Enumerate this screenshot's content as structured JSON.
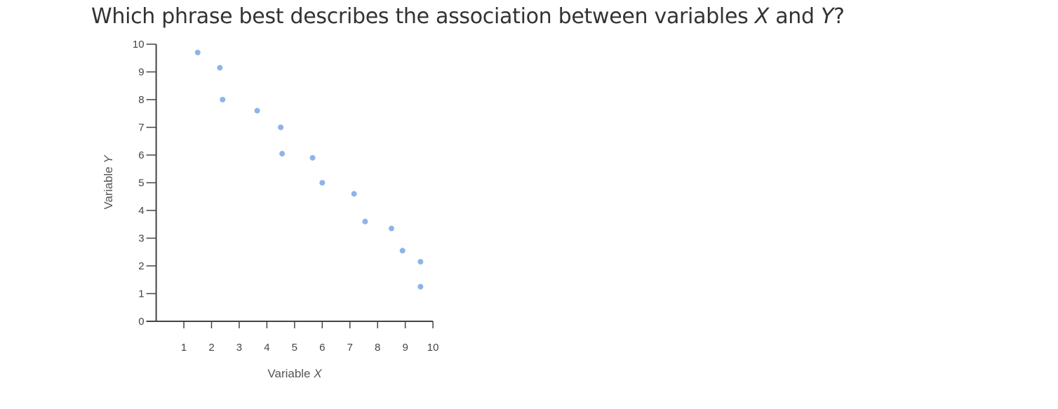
{
  "question": {
    "prefix": "Which phrase best describes the association between variables ",
    "var_x": "X",
    "middle": " and ",
    "var_y": "Y",
    "suffix": "?"
  },
  "chart_data": {
    "type": "scatter",
    "title": "",
    "xlabel": "Variable X",
    "ylabel": "Variable Y",
    "xlim": [
      0,
      10
    ],
    "ylim": [
      0,
      10
    ],
    "x_ticks": [
      "1",
      "2",
      "3",
      "4",
      "5",
      "6",
      "7",
      "8",
      "9",
      "10"
    ],
    "y_ticks": [
      "0",
      "1",
      "2",
      "3",
      "4",
      "5",
      "6",
      "7",
      "8",
      "9",
      "10"
    ],
    "grid": false,
    "point_color": "#8db4ea",
    "axis_color": "#444444",
    "points": [
      {
        "x": 1.5,
        "y": 9.7
      },
      {
        "x": 2.3,
        "y": 9.15
      },
      {
        "x": 2.4,
        "y": 8.0
      },
      {
        "x": 3.65,
        "y": 7.6
      },
      {
        "x": 4.5,
        "y": 7.0
      },
      {
        "x": 4.55,
        "y": 6.05
      },
      {
        "x": 5.65,
        "y": 5.9
      },
      {
        "x": 6.0,
        "y": 5.0
      },
      {
        "x": 7.15,
        "y": 4.6
      },
      {
        "x": 7.55,
        "y": 3.6
      },
      {
        "x": 8.5,
        "y": 3.35
      },
      {
        "x": 8.9,
        "y": 2.55
      },
      {
        "x": 9.55,
        "y": 2.15
      },
      {
        "x": 9.55,
        "y": 1.25
      }
    ]
  }
}
